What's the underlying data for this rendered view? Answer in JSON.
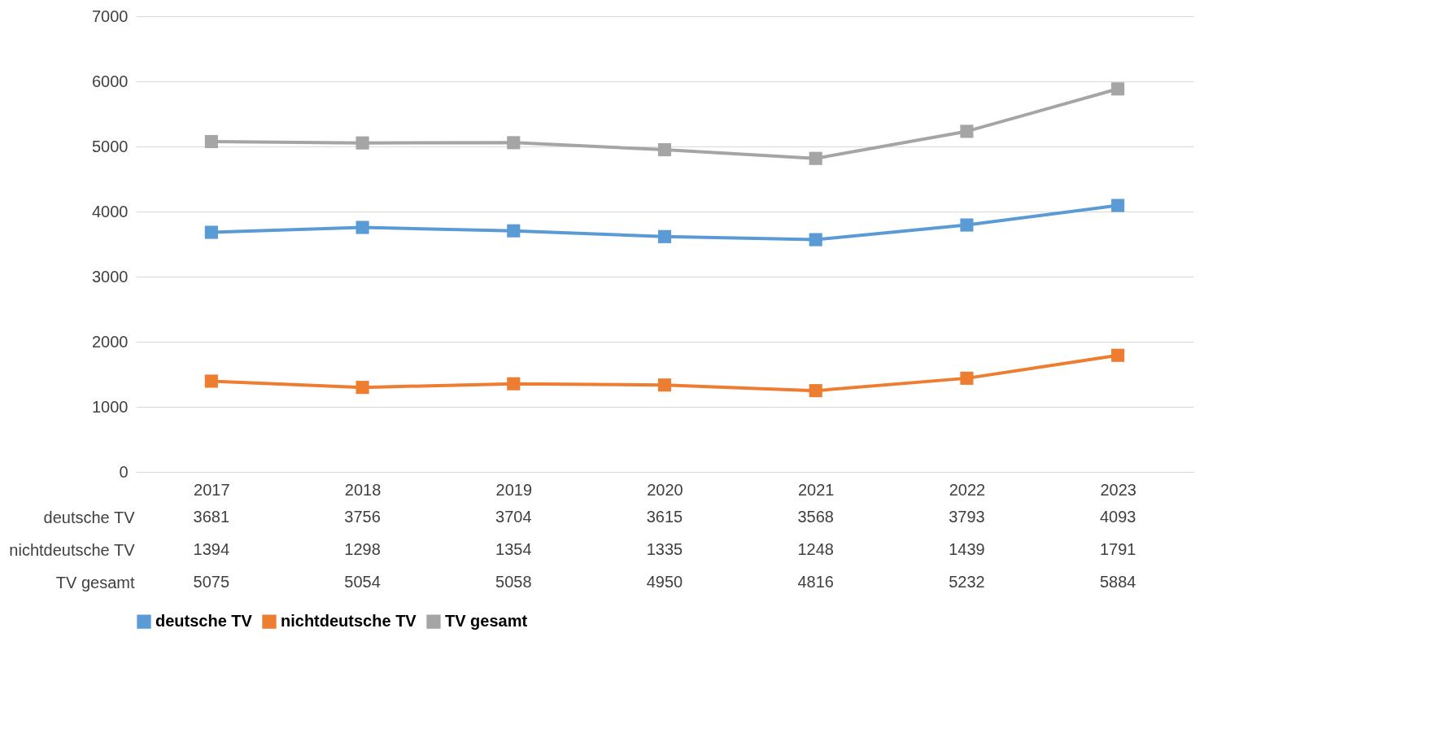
{
  "chart_data": {
    "type": "line",
    "categories": [
      "2017",
      "2018",
      "2019",
      "2020",
      "2021",
      "2022",
      "2023"
    ],
    "series": [
      {
        "name": "deutsche TV",
        "color": "#5b9bd5",
        "values": [
          3681,
          3756,
          3704,
          3615,
          3568,
          3793,
          4093
        ]
      },
      {
        "name": "nichtdeutsche TV",
        "color": "#ed7d31",
        "values": [
          1394,
          1298,
          1354,
          1335,
          1248,
          1439,
          1791
        ]
      },
      {
        "name": "TV gesamt",
        "color": "#a5a5a5",
        "values": [
          5075,
          5054,
          5058,
          4950,
          4816,
          5232,
          5884
        ]
      }
    ],
    "ylim": [
      0,
      7000
    ],
    "yticks": [
      0,
      1000,
      2000,
      3000,
      4000,
      5000,
      6000,
      7000
    ],
    "grid": "y",
    "legend": "bottom",
    "marker": "square",
    "data_labels": true
  }
}
